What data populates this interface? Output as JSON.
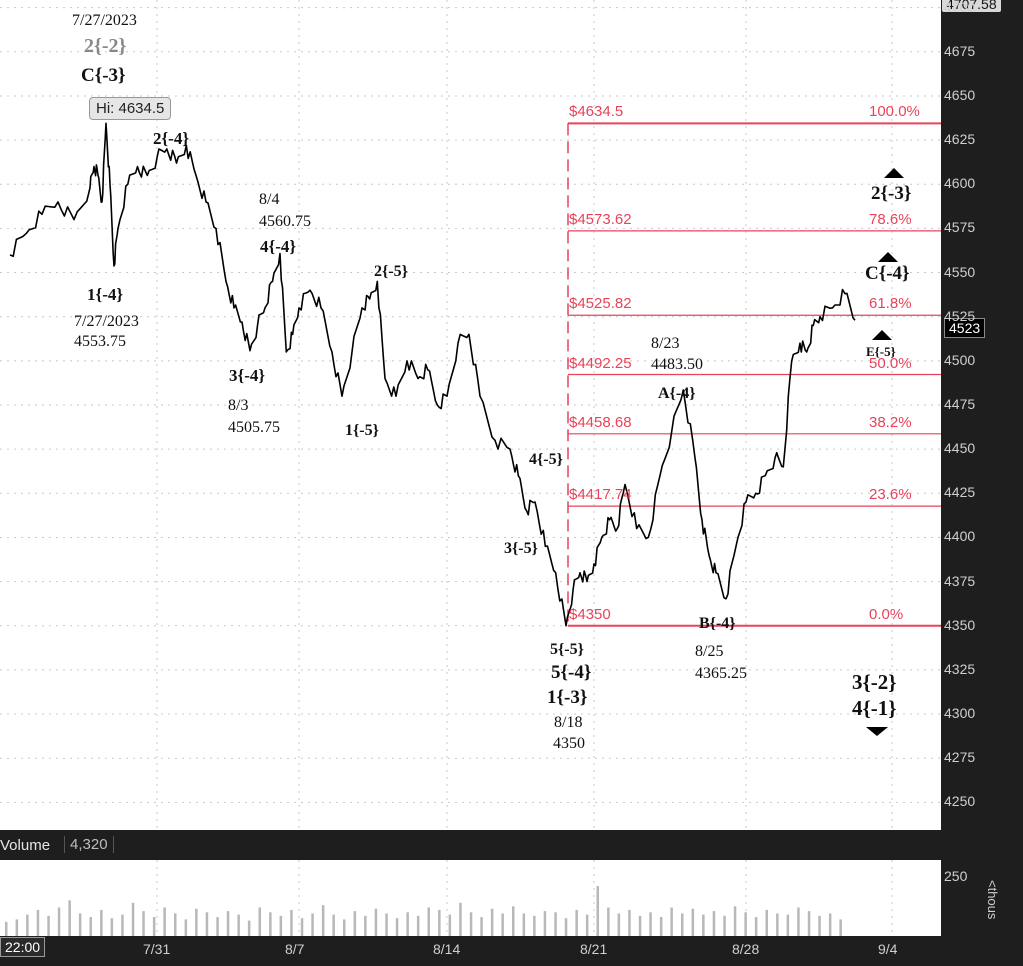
{
  "chart_data": {
    "type": "line",
    "title": "",
    "price_series": [
      [
        "7/26",
        4560
      ],
      [
        "7/26",
        4572
      ],
      [
        "7/26",
        4583
      ],
      [
        "7/26",
        4590
      ],
      [
        "7/26",
        4580
      ],
      [
        "7/27",
        4598
      ],
      [
        "7/27",
        4610
      ],
      [
        "7/27",
        4605
      ],
      [
        "7/27",
        4590
      ],
      [
        "7/27",
        4634.5
      ],
      [
        "7/27",
        4600
      ],
      [
        "7/27",
        4553.75
      ],
      [
        "7/28",
        4575
      ],
      [
        "7/28",
        4600
      ],
      [
        "7/28",
        4610
      ],
      [
        "7/28",
        4605
      ],
      [
        "7/31",
        4615
      ],
      [
        "7/31",
        4620
      ],
      [
        "7/31",
        4612
      ],
      [
        "7/31",
        4622
      ],
      [
        "8/1",
        4605
      ],
      [
        "8/1",
        4590
      ],
      [
        "8/1",
        4575
      ],
      [
        "8/2",
        4545
      ],
      [
        "8/2",
        4530
      ],
      [
        "8/2",
        4522
      ],
      [
        "8/3",
        4505.75
      ],
      [
        "8/3",
        4520
      ],
      [
        "8/3",
        4530
      ],
      [
        "8/3",
        4545
      ],
      [
        "8/4",
        4560.75
      ],
      [
        "8/4",
        4505
      ],
      [
        "8/4",
        4515
      ],
      [
        "8/7",
        4530
      ],
      [
        "8/7",
        4540
      ],
      [
        "8/7",
        4530
      ],
      [
        "8/8",
        4505
      ],
      [
        "8/8",
        4480
      ],
      [
        "8/8",
        4505
      ],
      [
        "8/9",
        4530
      ],
      [
        "8/9",
        4535
      ],
      [
        "8/9",
        4545
      ],
      [
        "8/10",
        4490
      ],
      [
        "8/10",
        4480
      ],
      [
        "8/10",
        4500
      ],
      [
        "8/11",
        4490
      ],
      [
        "8/11",
        4495
      ],
      [
        "8/11",
        4475
      ],
      [
        "8/14",
        4480
      ],
      [
        "8/14",
        4510
      ],
      [
        "8/14",
        4515
      ],
      [
        "8/15",
        4480
      ],
      [
        "8/15",
        4455
      ],
      [
        "8/16",
        4450
      ],
      [
        "8/16",
        4435
      ],
      [
        "8/16",
        4415
      ],
      [
        "8/17",
        4420
      ],
      [
        "8/17",
        4395
      ],
      [
        "8/17",
        4380
      ],
      [
        "8/18",
        4350
      ],
      [
        "8/18",
        4370
      ],
      [
        "8/18",
        4380
      ],
      [
        "8/18",
        4375
      ],
      [
        "8/21",
        4385
      ],
      [
        "8/21",
        4400
      ],
      [
        "8/21",
        4410
      ],
      [
        "8/21",
        4405
      ],
      [
        "8/22",
        4430
      ],
      [
        "8/22",
        4405
      ],
      [
        "8/22",
        4400
      ],
      [
        "8/23",
        4435
      ],
      [
        "8/23",
        4460
      ],
      [
        "8/23",
        4483.5
      ],
      [
        "8/24",
        4445
      ],
      [
        "8/24",
        4410
      ],
      [
        "8/24",
        4390
      ],
      [
        "8/25",
        4380
      ],
      [
        "8/25",
        4365.25
      ],
      [
        "8/25",
        4395
      ],
      [
        "8/28",
        4420
      ],
      [
        "8/28",
        4425
      ],
      [
        "8/28",
        4435
      ],
      [
        "8/29",
        4445
      ],
      [
        "8/29",
        4440
      ],
      [
        "8/29",
        4500
      ],
      [
        "8/30",
        4510
      ],
      [
        "8/30",
        4505
      ],
      [
        "8/30",
        4520
      ],
      [
        "8/31",
        4525
      ],
      [
        "8/31",
        4530
      ],
      [
        "9/1",
        4538
      ],
      [
        "9/1",
        4523
      ]
    ],
    "volume_values": [
      60,
      70,
      90,
      110,
      85,
      120,
      150,
      95,
      80,
      110,
      75,
      90,
      140,
      105,
      80,
      120,
      95,
      70,
      115,
      100,
      80,
      105,
      90,
      65,
      120,
      100,
      85,
      110,
      75,
      95,
      130,
      90,
      70,
      105,
      85,
      115,
      95,
      75,
      100,
      85,
      120,
      110,
      90,
      140,
      100,
      80,
      115,
      95,
      125,
      95,
      85,
      105,
      100,
      75,
      110,
      90,
      210,
      120,
      95,
      110,
      85,
      100,
      80,
      120,
      95,
      115,
      90,
      105,
      85,
      125,
      100,
      80,
      110,
      95,
      90,
      120,
      105,
      85,
      95,
      70
    ],
    "ylim": [
      4240,
      4710
    ],
    "y_ticks": [
      "4700",
      "4675",
      "4650",
      "4625",
      "4600",
      "4575",
      "4550",
      "4525",
      "4500",
      "4475",
      "4450",
      "4425",
      "4400",
      "4375",
      "4350",
      "4325",
      "4300",
      "4275",
      "4250"
    ],
    "x_ticks": [
      "7/31",
      "8/7",
      "8/14",
      "8/21",
      "8/28",
      "9/4"
    ],
    "vol_ticks": [
      "250"
    ],
    "vol_unit": "<thous",
    "fib_levels": [
      {
        "price": "$4634.5",
        "pct": "100.0%",
        "value": 4634.5
      },
      {
        "price": "$4573.62",
        "pct": "78.6%",
        "value": 4573.62
      },
      {
        "price": "$4525.82",
        "pct": "61.8%",
        "value": 4525.82
      },
      {
        "price": "$4492.25",
        "pct": "50.0%",
        "value": 4492.25
      },
      {
        "price": "$4458.68",
        "pct": "38.2%",
        "value": 4458.68
      },
      {
        "price": "$4417.74",
        "pct": "23.6%",
        "value": 4417.74
      },
      {
        "price": "$4350",
        "pct": "0.0%",
        "value": 4350
      }
    ],
    "top_label": "4707.58",
    "last_price": "4523",
    "time_label": "22:00",
    "volume_label": "Volume",
    "volume_value": "4,320",
    "hi_tooltip": "Hi: 4634.5"
  },
  "annotations": {
    "date_727_top": "7/27/2023",
    "wave_2m2": "2{-2}",
    "wave_cm3_top": "C{-3}",
    "wave_2m4_top": "2{-4}",
    "wave_1m4": "1{-4}",
    "date_727_low": "7/27/2023",
    "price_727_low": "4553.75",
    "date_84": "8/4",
    "price_84": "4560.75",
    "wave_4m4": "4{-4}",
    "wave_3m4": "3{-4}",
    "date_83": "8/3",
    "price_83": "4505.75",
    "wave_2m5": "2{-5}",
    "wave_1m5": "1{-5}",
    "wave_4m5": "4{-5}",
    "wave_3m5": "3{-5}",
    "wave_5m5": "5{-5}",
    "wave_5m4": "5{-4}",
    "wave_1m3": "1{-3}",
    "date_818": "8/18",
    "price_818": "4350",
    "date_823": "8/23",
    "price_823": "4483.50",
    "wave_am4": "A{-4}",
    "wave_bm4": "B{-4}",
    "date_825": "8/25",
    "price_825": "4365.25",
    "wave_2m3": "2{-3}",
    "wave_cm4": "C{-4}",
    "wave_em5": "E{-5}",
    "wave_3m2": "3{-2}",
    "wave_4m1": "4{-1}"
  },
  "colors": {
    "fib": "#e8435a",
    "price": "#000000",
    "volume": "#b8b8b8",
    "annotation_gray": "#888888"
  }
}
